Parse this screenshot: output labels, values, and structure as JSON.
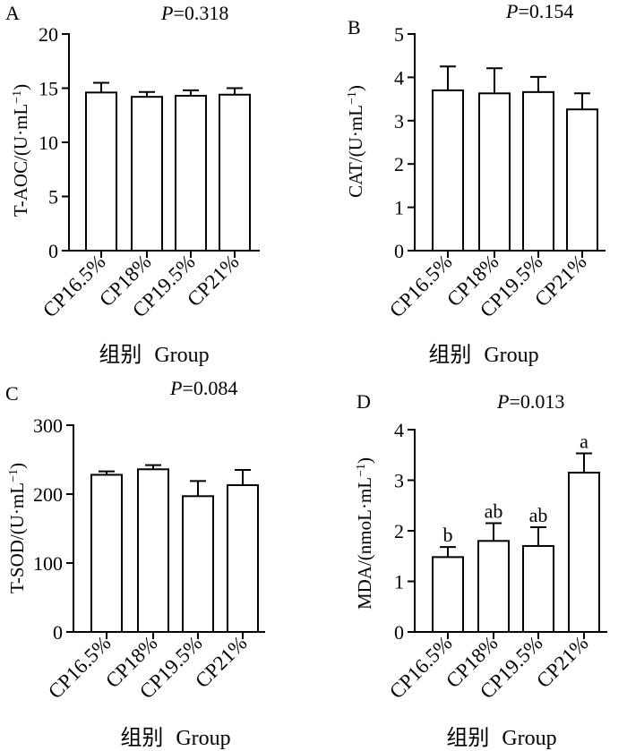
{
  "figure": {
    "xlabel_cn": "组别",
    "xlabel_en": "Group"
  },
  "chart_data": [
    {
      "type": "bar",
      "panel": "A",
      "p_label": "P",
      "p_value": "=0.318",
      "ylabel_main": "T-AOC/(U·mL",
      "ylabel_sup": "−1",
      "ylabel_close": ")",
      "categories": [
        "CP16.5%",
        "CP18%",
        "CP19.5%",
        "CP21%"
      ],
      "values": [
        14.6,
        14.2,
        14.3,
        14.4
      ],
      "errors": [
        0.9,
        0.45,
        0.5,
        0.6
      ],
      "ylim": [
        0,
        20
      ],
      "yticks": [
        0,
        5,
        10,
        15,
        20
      ],
      "labels": [
        "",
        "",
        "",
        ""
      ]
    },
    {
      "type": "bar",
      "panel": "B",
      "p_label": "P",
      "p_value": "=0.154",
      "ylabel_main": "CAT/(U·mL",
      "ylabel_sup": "−1",
      "ylabel_close": ")",
      "categories": [
        "CP16.5%",
        "CP18%",
        "CP19.5%",
        "CP21%"
      ],
      "values": [
        3.7,
        3.63,
        3.66,
        3.26
      ],
      "errors": [
        0.55,
        0.58,
        0.35,
        0.37
      ],
      "ylim": [
        0,
        5
      ],
      "yticks": [
        0,
        1,
        2,
        3,
        4,
        5
      ],
      "labels": [
        "",
        "",
        "",
        ""
      ]
    },
    {
      "type": "bar",
      "panel": "C",
      "p_label": "P",
      "p_value": "=0.084",
      "ylabel_main": "T-SOD/(U·mL",
      "ylabel_sup": "−1",
      "ylabel_close": ")",
      "categories": [
        "CP16.5%",
        "CP18%",
        "CP19.5%",
        "CP21%"
      ],
      "values": [
        228,
        236,
        197,
        213
      ],
      "errors": [
        5,
        6,
        22,
        22
      ],
      "ylim": [
        0,
        300
      ],
      "yticks": [
        0,
        100,
        200,
        300
      ],
      "labels": [
        "",
        "",
        "",
        ""
      ]
    },
    {
      "type": "bar",
      "panel": "D",
      "p_label": "P",
      "p_value": "=0.013",
      "ylabel_main": "MDA/(nmoL·mL",
      "ylabel_sup": "−1",
      "ylabel_close": ")",
      "categories": [
        "CP16.5%",
        "CP18%",
        "CP19.5%",
        "CP21%"
      ],
      "values": [
        1.48,
        1.8,
        1.7,
        3.15
      ],
      "errors": [
        0.2,
        0.35,
        0.37,
        0.38
      ],
      "ylim": [
        0,
        4
      ],
      "yticks": [
        0,
        1,
        2,
        3,
        4
      ],
      "labels": [
        "b",
        "ab",
        "ab",
        "a"
      ]
    }
  ]
}
